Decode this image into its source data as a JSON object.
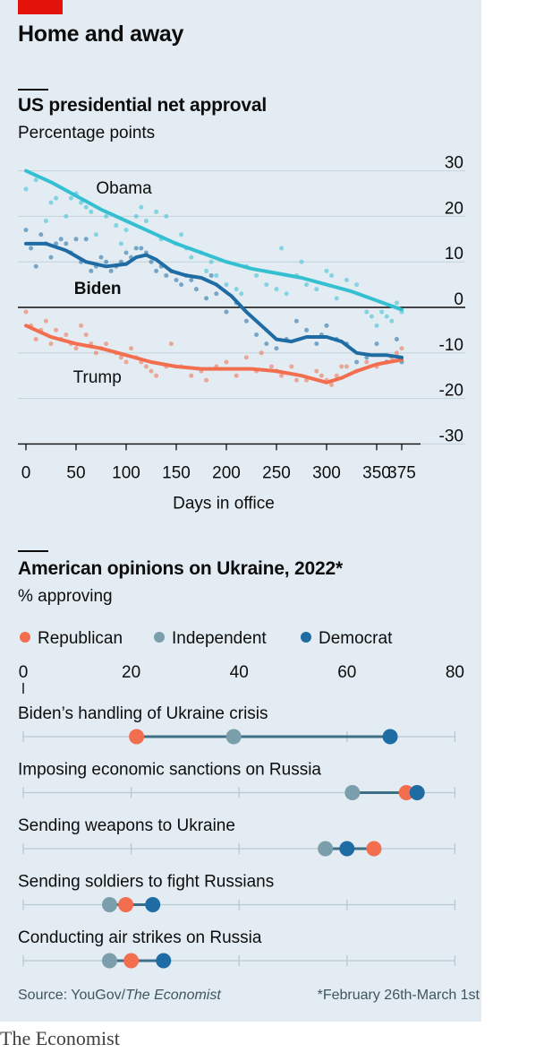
{
  "header": {
    "title": "Home and away"
  },
  "chart_data": [
    {
      "type": "line",
      "title": "US presidential net approval",
      "subtitle": "Percentage points",
      "xlabel": "Days in office",
      "xticks": [
        0,
        50,
        100,
        150,
        200,
        250,
        300,
        350,
        375
      ],
      "yticks": [
        30,
        20,
        10,
        0,
        -10,
        -20,
        -30
      ],
      "xlim": [
        0,
        390
      ],
      "ylim": [
        -30,
        30
      ],
      "grid": true,
      "series": [
        {
          "name": "Obama",
          "color": "#35c0d2",
          "trend": [
            [
              0,
              30
            ],
            [
              25,
              27.5
            ],
            [
              50,
              24.5
            ],
            [
              75,
              21.5
            ],
            [
              100,
              19
            ],
            [
              125,
              16.5
            ],
            [
              150,
              14
            ],
            [
              175,
              12
            ],
            [
              200,
              10
            ],
            [
              225,
              8.5
            ],
            [
              250,
              7.5
            ],
            [
              275,
              6.5
            ],
            [
              300,
              5
            ],
            [
              325,
              3.5
            ],
            [
              350,
              1.5
            ],
            [
              375,
              -0.5
            ]
          ],
          "points": [
            [
              0,
              26
            ],
            [
              10,
              28
            ],
            [
              20,
              19
            ],
            [
              25,
              23
            ],
            [
              30,
              24
            ],
            [
              40,
              20
            ],
            [
              45,
              24
            ],
            [
              50,
              25
            ],
            [
              55,
              23
            ],
            [
              60,
              22
            ],
            [
              65,
              21
            ],
            [
              70,
              16
            ],
            [
              80,
              20
            ],
            [
              90,
              18
            ],
            [
              95,
              14
            ],
            [
              100,
              17
            ],
            [
              110,
              20
            ],
            [
              115,
              22
            ],
            [
              120,
              19
            ],
            [
              130,
              21
            ],
            [
              135,
              15
            ],
            [
              140,
              20
            ],
            [
              150,
              14
            ],
            [
              155,
              16
            ],
            [
              160,
              13
            ],
            [
              165,
              11
            ],
            [
              175,
              12
            ],
            [
              180,
              8
            ],
            [
              185,
              10
            ],
            [
              190,
              7
            ],
            [
              200,
              5
            ],
            [
              210,
              4
            ],
            [
              215,
              3
            ],
            [
              220,
              9
            ],
            [
              230,
              7
            ],
            [
              240,
              5
            ],
            [
              250,
              4
            ],
            [
              255,
              13
            ],
            [
              260,
              3
            ],
            [
              270,
              7
            ],
            [
              275,
              10
            ],
            [
              280,
              5
            ],
            [
              290,
              4
            ],
            [
              300,
              8
            ],
            [
              305,
              7
            ],
            [
              310,
              2
            ],
            [
              320,
              6
            ],
            [
              330,
              5
            ],
            [
              340,
              -1
            ],
            [
              345,
              -2
            ],
            [
              350,
              -4
            ],
            [
              355,
              -1
            ],
            [
              360,
              -2
            ],
            [
              365,
              -3
            ],
            [
              370,
              1
            ],
            [
              375,
              -1
            ]
          ]
        },
        {
          "name": "Biden",
          "color": "#1f6ba4",
          "trend": [
            [
              0,
              14
            ],
            [
              20,
              14
            ],
            [
              40,
              12.5
            ],
            [
              60,
              10
            ],
            [
              80,
              9
            ],
            [
              100,
              9.5
            ],
            [
              110,
              11
            ],
            [
              120,
              11.5
            ],
            [
              130,
              10.5
            ],
            [
              145,
              8
            ],
            [
              160,
              7
            ],
            [
              175,
              6.5
            ],
            [
              190,
              5
            ],
            [
              205,
              2.5
            ],
            [
              220,
              -1
            ],
            [
              235,
              -4
            ],
            [
              250,
              -7
            ],
            [
              265,
              -7.5
            ],
            [
              280,
              -6.5
            ],
            [
              300,
              -6.5
            ],
            [
              315,
              -7.5
            ],
            [
              330,
              -10
            ],
            [
              345,
              -10.5
            ],
            [
              360,
              -10.5
            ],
            [
              375,
              -11
            ]
          ],
          "points": [
            [
              0,
              17
            ],
            [
              5,
              13
            ],
            [
              10,
              9
            ],
            [
              15,
              16
            ],
            [
              20,
              14
            ],
            [
              25,
              11
            ],
            [
              30,
              14
            ],
            [
              35,
              15
            ],
            [
              40,
              14
            ],
            [
              45,
              12
            ],
            [
              50,
              15
            ],
            [
              55,
              10
            ],
            [
              60,
              15
            ],
            [
              65,
              8
            ],
            [
              70,
              9
            ],
            [
              75,
              11
            ],
            [
              80,
              10
            ],
            [
              85,
              8
            ],
            [
              90,
              9
            ],
            [
              95,
              10
            ],
            [
              100,
              12
            ],
            [
              105,
              11
            ],
            [
              110,
              13
            ],
            [
              115,
              13
            ],
            [
              120,
              12
            ],
            [
              125,
              10
            ],
            [
              130,
              8
            ],
            [
              135,
              9
            ],
            [
              140,
              7
            ],
            [
              145,
              8
            ],
            [
              150,
              6
            ],
            [
              155,
              5
            ],
            [
              160,
              7
            ],
            [
              165,
              6
            ],
            [
              170,
              4
            ],
            [
              180,
              2
            ],
            [
              185,
              7
            ],
            [
              190,
              3
            ],
            [
              200,
              -1
            ],
            [
              210,
              1
            ],
            [
              220,
              -3
            ],
            [
              230,
              -6
            ],
            [
              240,
              -8
            ],
            [
              250,
              -9
            ],
            [
              260,
              -7
            ],
            [
              270,
              -3
            ],
            [
              280,
              -5
            ],
            [
              290,
              -8
            ],
            [
              295,
              -6
            ],
            [
              300,
              -4
            ],
            [
              310,
              -7
            ],
            [
              320,
              -8
            ],
            [
              330,
              -12
            ],
            [
              340,
              -11
            ],
            [
              350,
              -8
            ],
            [
              360,
              -12
            ],
            [
              370,
              -7
            ],
            [
              375,
              -12
            ]
          ]
        },
        {
          "name": "Trump",
          "color": "#f26e4f",
          "trend": [
            [
              0,
              -4
            ],
            [
              25,
              -6.5
            ],
            [
              50,
              -8
            ],
            [
              75,
              -9
            ],
            [
              100,
              -10.5
            ],
            [
              125,
              -12
            ],
            [
              150,
              -13
            ],
            [
              175,
              -13.5
            ],
            [
              200,
              -13.5
            ],
            [
              225,
              -13.5
            ],
            [
              250,
              -14
            ],
            [
              275,
              -15
            ],
            [
              300,
              -16.5
            ],
            [
              315,
              -15.5
            ],
            [
              330,
              -14
            ],
            [
              350,
              -12.5
            ],
            [
              375,
              -11.5
            ]
          ],
          "points": [
            [
              0,
              -1
            ],
            [
              5,
              -4
            ],
            [
              10,
              -7
            ],
            [
              15,
              -5
            ],
            [
              20,
              -3
            ],
            [
              25,
              -8
            ],
            [
              30,
              -5
            ],
            [
              35,
              -7
            ],
            [
              40,
              -6
            ],
            [
              45,
              -8
            ],
            [
              50,
              -9
            ],
            [
              55,
              -4
            ],
            [
              60,
              -6
            ],
            [
              65,
              -8
            ],
            [
              70,
              -10
            ],
            [
              75,
              -9
            ],
            [
              80,
              -8
            ],
            [
              90,
              -10
            ],
            [
              95,
              -11
            ],
            [
              100,
              -12
            ],
            [
              105,
              -9
            ],
            [
              110,
              -11
            ],
            [
              115,
              -12
            ],
            [
              120,
              -13
            ],
            [
              125,
              -14
            ],
            [
              130,
              -15
            ],
            [
              140,
              -13
            ],
            [
              145,
              -8
            ],
            [
              155,
              -13
            ],
            [
              165,
              -15
            ],
            [
              175,
              -14
            ],
            [
              180,
              -16
            ],
            [
              190,
              -13
            ],
            [
              200,
              -12
            ],
            [
              210,
              -15
            ],
            [
              220,
              -11
            ],
            [
              230,
              -14
            ],
            [
              235,
              -10
            ],
            [
              245,
              -13
            ],
            [
              250,
              -14
            ],
            [
              255,
              -15
            ],
            [
              265,
              -13
            ],
            [
              270,
              -16
            ],
            [
              280,
              -16
            ],
            [
              290,
              -14
            ],
            [
              295,
              -15
            ],
            [
              300,
              -16
            ],
            [
              305,
              -17
            ],
            [
              310,
              -15
            ],
            [
              315,
              -13
            ],
            [
              320,
              -13
            ],
            [
              330,
              -14
            ],
            [
              340,
              -12
            ],
            [
              350,
              -13
            ],
            [
              360,
              -12
            ],
            [
              365,
              -11
            ],
            [
              370,
              -10
            ],
            [
              375,
              -9
            ]
          ]
        }
      ]
    },
    {
      "type": "dot",
      "title": "American opinions on Ukraine, 2022*",
      "subtitle": "% approving",
      "xlim": [
        0,
        80
      ],
      "xticks": [
        0,
        20,
        40,
        60,
        80
      ],
      "legend": [
        {
          "name": "Republican",
          "color": "#f26e4f"
        },
        {
          "name": "Independent",
          "color": "#7a9eab"
        },
        {
          "name": "Democrat",
          "color": "#1f6ba4"
        }
      ],
      "categories": [
        "Biden’s handling of Ukraine crisis",
        "Imposing economic sanctions on Russia",
        "Sending weapons to Ukraine",
        "Sending soldiers to fight Russians",
        "Conducting air strikes on Russia"
      ],
      "series": [
        {
          "name": "Republican",
          "values": [
            21,
            71,
            65,
            19,
            20
          ]
        },
        {
          "name": "Independent",
          "values": [
            39,
            61,
            56,
            16,
            16
          ]
        },
        {
          "name": "Democrat",
          "values": [
            68,
            73,
            60,
            24,
            26
          ]
        }
      ]
    }
  ],
  "footer": {
    "source_prefix": "Source: YouGov/",
    "source_italic": "The Economist",
    "note": "*February 26th-March 1st",
    "brand": "The Economist"
  }
}
